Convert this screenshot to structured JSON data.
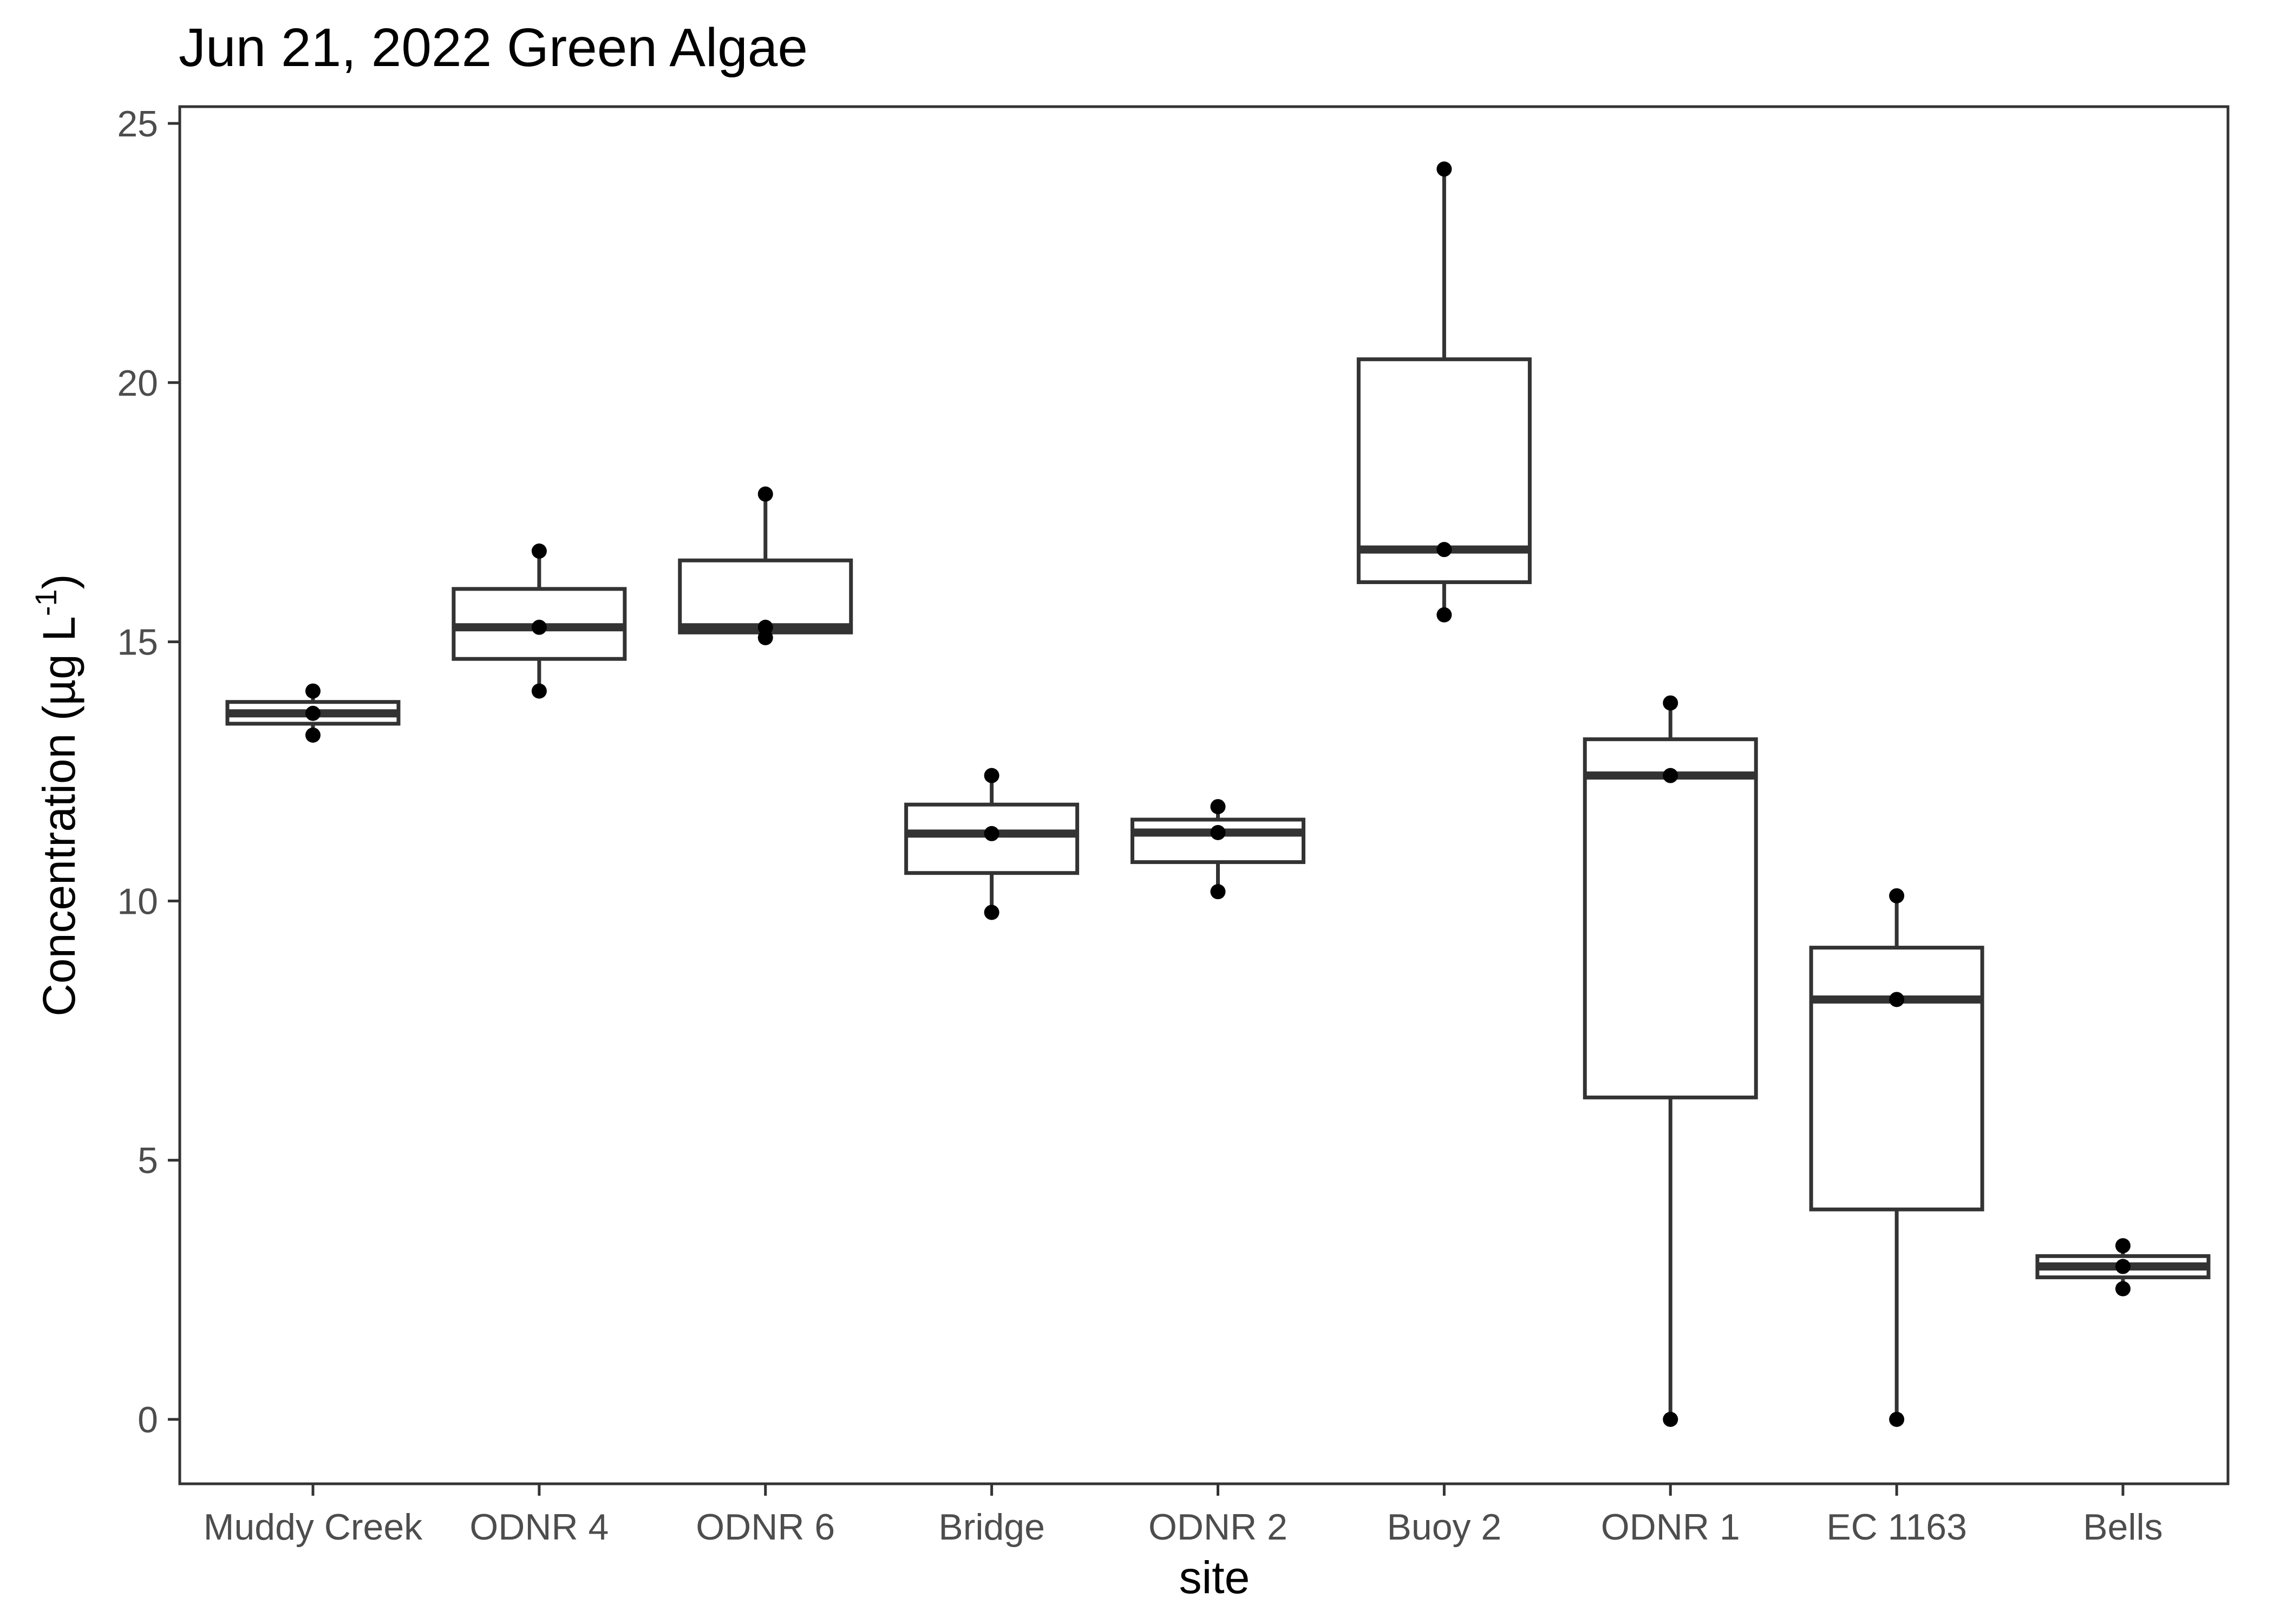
{
  "chart_data": {
    "type": "boxplot",
    "title": "Jun 21, 2022 Green Algae",
    "xlabel": "site",
    "ylabel": "Concentration (µg L⁻¹)",
    "ylabel_parts": {
      "main": "Concentration (µg L",
      "sup": "-1",
      "end": ")"
    },
    "ylim": [
      -1.2,
      25.4
    ],
    "yticks": [
      0,
      5,
      10,
      15,
      20,
      25
    ],
    "grid": false,
    "categories": [
      "Muddy Creek",
      "ODNR 4",
      "ODNR 6",
      "Bridge",
      "ODNR 2",
      "Buoy 2",
      "ODNR 1",
      "EC 1163",
      "Bells"
    ],
    "boxes": [
      {
        "site": "Muddy Creek",
        "min": 13.2,
        "q1": 13.42,
        "median": 13.62,
        "q3": 13.84,
        "max": 14.05,
        "points": [
          14.05,
          13.62,
          13.2
        ]
      },
      {
        "site": "ODNR 4",
        "min": 14.05,
        "q1": 14.67,
        "median": 15.28,
        "q3": 16.02,
        "max": 16.75,
        "points": [
          16.75,
          15.28,
          14.05
        ]
      },
      {
        "site": "ODNR 6",
        "min": 15.08,
        "q1": 15.18,
        "median": 15.28,
        "q3": 16.57,
        "max": 17.85,
        "points": [
          17.85,
          15.28,
          15.08
        ]
      },
      {
        "site": "Bridge",
        "min": 9.78,
        "q1": 10.54,
        "median": 11.3,
        "q3": 11.86,
        "max": 12.42,
        "points": [
          12.42,
          11.3,
          9.78
        ]
      },
      {
        "site": "ODNR 2",
        "min": 10.18,
        "q1": 10.75,
        "median": 11.32,
        "q3": 11.57,
        "max": 11.82,
        "points": [
          11.82,
          11.32,
          10.18
        ]
      },
      {
        "site": "Buoy 2",
        "min": 15.52,
        "q1": 16.15,
        "median": 16.78,
        "q3": 20.45,
        "max": 24.12,
        "points": [
          24.12,
          16.78,
          15.52
        ]
      },
      {
        "site": "ODNR 1",
        "min": 0.0,
        "q1": 6.21,
        "median": 12.42,
        "q3": 13.12,
        "max": 13.82,
        "points": [
          13.82,
          12.42,
          0.0
        ]
      },
      {
        "site": "EC 1163",
        "min": 0.0,
        "q1": 4.05,
        "median": 8.1,
        "q3": 9.1,
        "max": 10.1,
        "points": [
          10.1,
          8.1,
          0.0
        ]
      },
      {
        "site": "Bells",
        "min": 2.52,
        "q1": 2.74,
        "median": 2.95,
        "q3": 3.15,
        "max": 3.35,
        "points": [
          3.35,
          2.95,
          2.52
        ]
      }
    ]
  }
}
